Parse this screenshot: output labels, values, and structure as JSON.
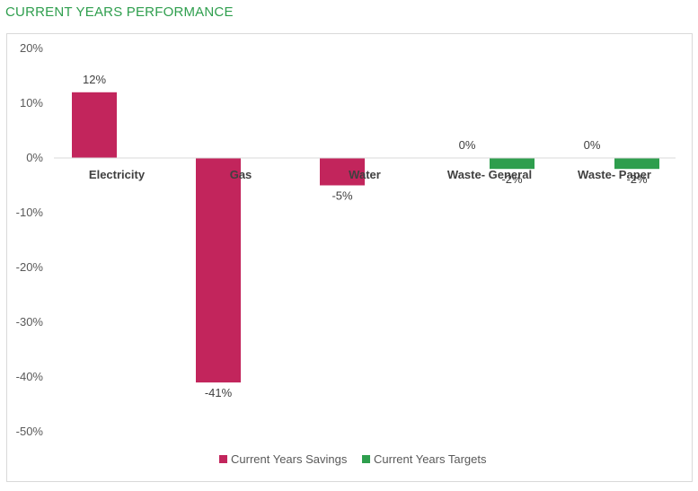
{
  "title": "CURRENT YEARS PERFORMANCE",
  "colors": {
    "savings": "#c2255c",
    "targets": "#2e9e4d",
    "title": "#2e9e4d"
  },
  "chart_data": {
    "type": "bar",
    "title": "CURRENT YEARS PERFORMANCE",
    "categories": [
      "Electricity",
      "Gas",
      "Water",
      "Waste- General",
      "Waste- Paper"
    ],
    "series": [
      {
        "name": "Current Years Savings",
        "values": [
          12,
          -41,
          -5,
          0,
          0
        ],
        "labels": [
          "12%",
          "-41%",
          "-5%",
          "0%",
          "0%"
        ]
      },
      {
        "name": "Current Years Targets",
        "values": [
          null,
          null,
          null,
          -2,
          -2
        ],
        "labels": [
          "",
          "",
          "",
          "-2%",
          "-2%"
        ]
      }
    ],
    "yticks": [
      "20%",
      "10%",
      "0%",
      "-10%",
      "-20%",
      "-30%",
      "-40%",
      "-50%"
    ],
    "ylim": [
      -50,
      20
    ],
    "legend_position": "bottom",
    "xlabel": "",
    "ylabel": ""
  }
}
